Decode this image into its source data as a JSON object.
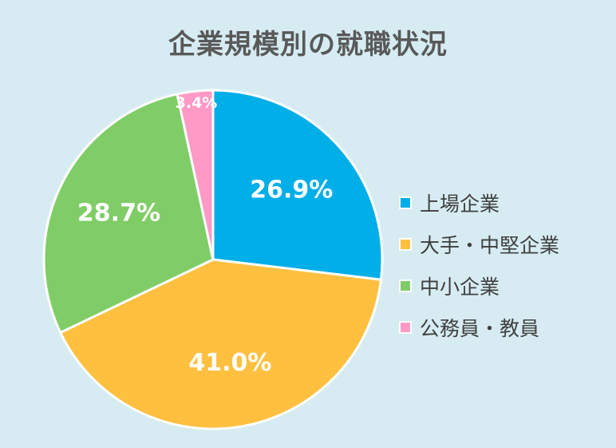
{
  "chart_data": {
    "type": "pie",
    "title": "企業規模別の就職状況",
    "categories": [
      "上場企業",
      "大手・中堅企業",
      "中小企業",
      "公務員・教員"
    ],
    "values": [
      26.9,
      41.0,
      28.7,
      3.4
    ],
    "labels": [
      "26.9%",
      "41.0%",
      "28.7%",
      "3.4%"
    ],
    "colors": [
      "#00aee8",
      "#ffbf3f",
      "#80cd67",
      "#ff99c6"
    ],
    "legend_position": "right",
    "start_angle": "12 o'clock",
    "direction": "clockwise"
  }
}
